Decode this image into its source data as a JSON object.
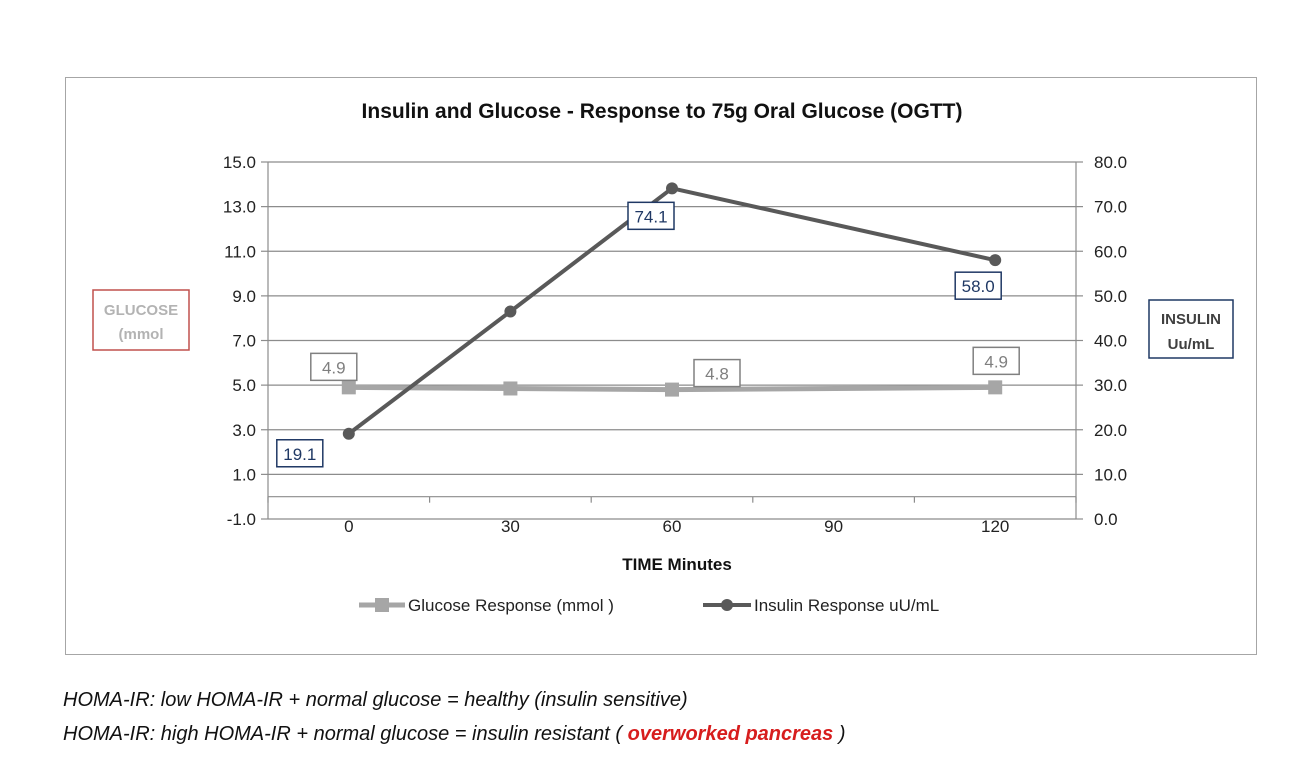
{
  "chart_data": {
    "type": "line",
    "title": "Insulin and Glucose - Response to 75g Oral Glucose (OGTT)",
    "xlabel": "TIME Minutes",
    "x": [
      0,
      30,
      60,
      90,
      120
    ],
    "y_left": {
      "label_lines": [
        "GLUCOSE",
        "(mmol"
      ],
      "range": [
        -1.0,
        15.0
      ],
      "ticks": [
        "15.0",
        "13.0",
        "11.0",
        "9.0",
        "7.0",
        "5.0",
        "3.0",
        "1.0",
        "-1.0"
      ]
    },
    "y_right": {
      "label_lines": [
        "INSULIN",
        "Uu/mL"
      ],
      "range": [
        0.0,
        80.0
      ],
      "ticks": [
        "80.0",
        "70.0",
        "60.0",
        "50.0",
        "40.0",
        "30.0",
        "20.0",
        "10.0",
        "0.0"
      ]
    },
    "grid": true,
    "legend_position": "bottom",
    "series": [
      {
        "name": "Glucose  Response  (mmol )",
        "axis": "left",
        "color": "#a6a6a6",
        "marker": "square",
        "x": [
          0,
          30,
          60,
          120
        ],
        "values": [
          4.9,
          4.85,
          4.8,
          4.9
        ],
        "labels": [
          {
            "x": 0,
            "text": "4.9"
          },
          {
            "x": 60,
            "text": "4.8"
          },
          {
            "x": 120,
            "text": "4.9"
          }
        ]
      },
      {
        "name": "Insulin  Response  uU/mL",
        "axis": "right",
        "color": "#595959",
        "marker": "circle",
        "x": [
          0,
          30,
          60,
          120
        ],
        "values": [
          19.1,
          46.5,
          74.1,
          58.0
        ],
        "labels": [
          {
            "x": 0,
            "text": "19.1"
          },
          {
            "x": 60,
            "text": "74.1"
          },
          {
            "x": 120,
            "text": "58.0"
          }
        ]
      }
    ]
  },
  "colors": {
    "glucose_label_border": "#c0504d",
    "insulin_label_border": "#1f3864",
    "emphasis": "#d71d1d"
  },
  "footnotes": {
    "line1": "HOMA-IR: low HOMA-IR + normal glucose = healthy (insulin sensitive)",
    "line2_before": "HOMA-IR: high HOMA-IR + normal glucose = insulin resistant ( ",
    "line2_emph": "overworked pancreas",
    "line2_after": " )"
  }
}
